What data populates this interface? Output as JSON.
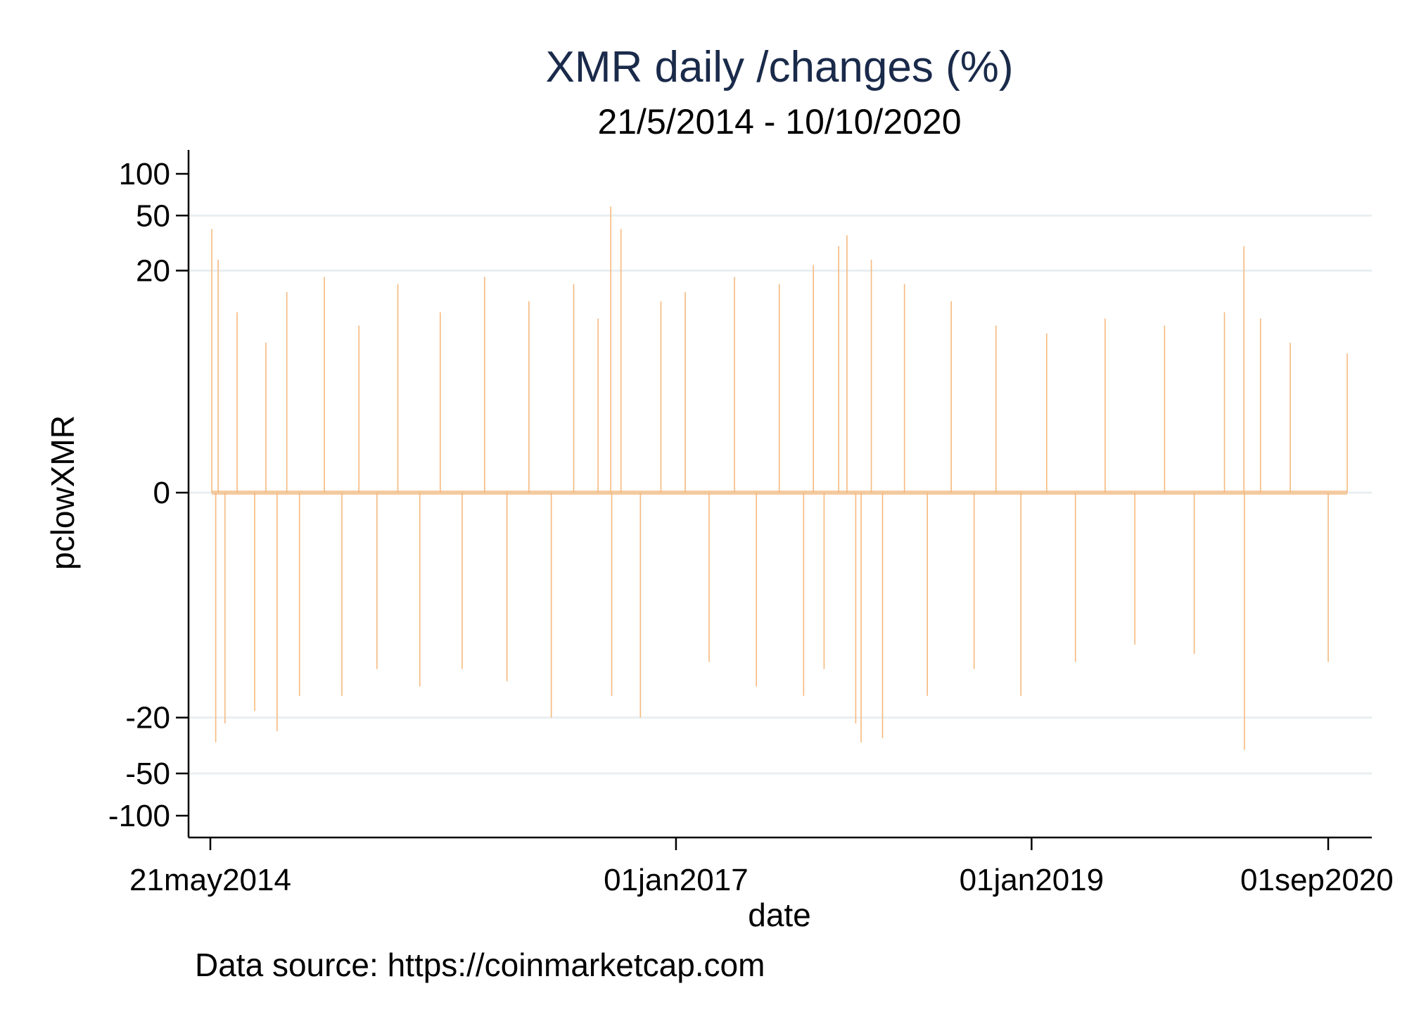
{
  "chart_data": {
    "type": "line",
    "title": "XMR daily /changes (%)",
    "subtitle": "21/5/2014 - 10/10/2020",
    "xlabel": "date",
    "ylabel": "pclowXMR",
    "note": "Data source: https://coinmarketcap.com",
    "x_ticks": [
      "21may2014",
      "01jan2017",
      "01jan2019",
      "01sep2020"
    ],
    "x_tick_dates": [
      "2014-05-21",
      "2017-01-01",
      "2019-01-01",
      "2020-09-01"
    ],
    "y_ticks": [
      "100",
      "50",
      "20",
      "0",
      "-20",
      "-50",
      "-100"
    ],
    "y_scale": "asinh (nonlinear)",
    "grid": true,
    "series": [
      {
        "color": "#f5b97e",
        "x": [
          "2014-05-24",
          "2014-06-01",
          "2014-06-06",
          "2014-06-20",
          "2014-07-15",
          "2014-08-20",
          "2014-09-12",
          "2014-10-05",
          "2014-10-25",
          "2014-11-20",
          "2015-01-10",
          "2015-02-15",
          "2015-03-22",
          "2015-04-28",
          "2015-06-10",
          "2015-07-25",
          "2015-09-05",
          "2015-10-20",
          "2015-12-05",
          "2016-01-20",
          "2016-03-05",
          "2016-04-20",
          "2016-06-05",
          "2016-07-25",
          "2016-08-20",
          "2016-08-22",
          "2016-09-10",
          "2016-10-20",
          "2016-12-01",
          "2017-01-20",
          "2017-03-10",
          "2017-05-01",
          "2017-06-15",
          "2017-08-01",
          "2017-09-20",
          "2017-10-10",
          "2017-11-01",
          "2017-12-01",
          "2017-12-18",
          "2018-01-05",
          "2018-01-16",
          "2018-02-06",
          "2018-03-01",
          "2018-04-15",
          "2018-06-01",
          "2018-07-20",
          "2018-09-05",
          "2018-10-20",
          "2018-12-10",
          "2019-02-01",
          "2019-04-01",
          "2019-06-01",
          "2019-08-01",
          "2019-10-01",
          "2019-12-01",
          "2020-02-01",
          "2020-03-12",
          "2020-03-13",
          "2020-04-15",
          "2020-06-15",
          "2020-09-01",
          "2020-10-10"
        ],
        "values": [
          40,
          -30,
          24,
          -22,
          10,
          -18,
          6,
          -25,
          14,
          -14,
          18,
          -14,
          8,
          -9,
          16,
          -12,
          10,
          -9,
          18,
          -11,
          12,
          -20,
          16,
          9,
          58,
          -14,
          40,
          -20,
          12,
          14,
          -8,
          18,
          -12,
          16,
          -14,
          22,
          -9,
          30,
          36,
          -22,
          -30,
          24,
          -28,
          16,
          -14,
          12,
          -9,
          8,
          -14,
          7,
          -8,
          9,
          -6,
          8,
          -7,
          10,
          30,
          -34,
          9,
          6,
          -8,
          5
        ]
      }
    ]
  }
}
